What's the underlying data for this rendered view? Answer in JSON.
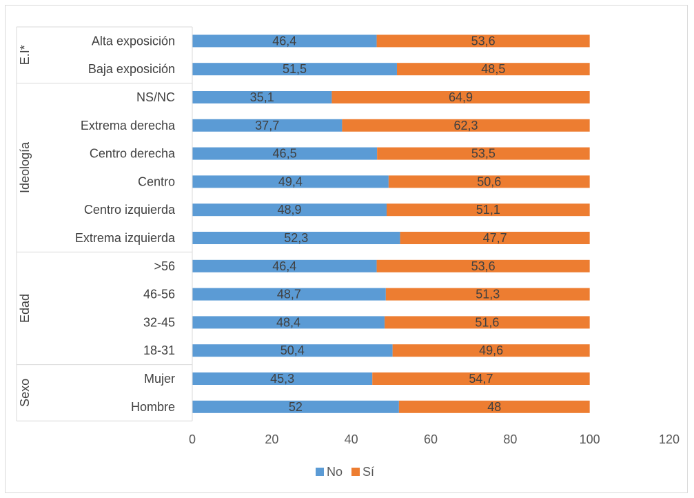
{
  "chart_data": {
    "type": "bar",
    "orientation": "horizontal",
    "stacked": true,
    "groups": [
      {
        "name": "E.I*",
        "categories": [
          "Alta exposición",
          "Baja exposición"
        ]
      },
      {
        "name": "Ideología",
        "categories": [
          "NS/NC",
          "Extrema derecha",
          "Centro derecha",
          "Centro",
          "Centro izquierda",
          "Extrema izquierda"
        ]
      },
      {
        "name": "Edad",
        "categories": [
          ">56",
          "46-56",
          "32-45",
          "18-31"
        ]
      },
      {
        "name": "Sexo",
        "categories": [
          "Mujer",
          "Hombre"
        ]
      }
    ],
    "categories": [
      "Alta exposición",
      "Baja exposición",
      "NS/NC",
      "Extrema derecha",
      "Centro derecha",
      "Centro",
      "Centro izquierda",
      "Extrema izquierda",
      ">56",
      "46-56",
      "32-45",
      "18-31",
      "Mujer",
      "Hombre"
    ],
    "series": [
      {
        "name": "No",
        "color": "#5b9bd5",
        "values": [
          46.4,
          51.5,
          35.1,
          37.7,
          46.5,
          49.4,
          48.9,
          52.3,
          46.4,
          48.7,
          48.4,
          50.4,
          45.3,
          52
        ]
      },
      {
        "name": "Sí",
        "color": "#ed7d31",
        "values": [
          53.6,
          48.5,
          64.9,
          62.3,
          53.5,
          50.6,
          51.1,
          47.7,
          53.6,
          51.3,
          51.6,
          49.6,
          54.7,
          48
        ]
      }
    ],
    "value_labels": [
      [
        "46,4",
        "51,5",
        "35,1",
        "37,7",
        "46,5",
        "49,4",
        "48,9",
        "52,3",
        "46,4",
        "48,7",
        "48,4",
        "50,4",
        "45,3",
        "52"
      ],
      [
        "53,6",
        "48,5",
        "64,9",
        "62,3",
        "53,5",
        "50,6",
        "51,1",
        "47,7",
        "53,6",
        "51,3",
        "51,6",
        "49,6",
        "54,7",
        "48"
      ]
    ],
    "x_ticks": [
      "0",
      "20",
      "40",
      "60",
      "80",
      "100",
      "120"
    ],
    "xlim": [
      0,
      120
    ],
    "grid": false,
    "legend_position": "bottom"
  }
}
